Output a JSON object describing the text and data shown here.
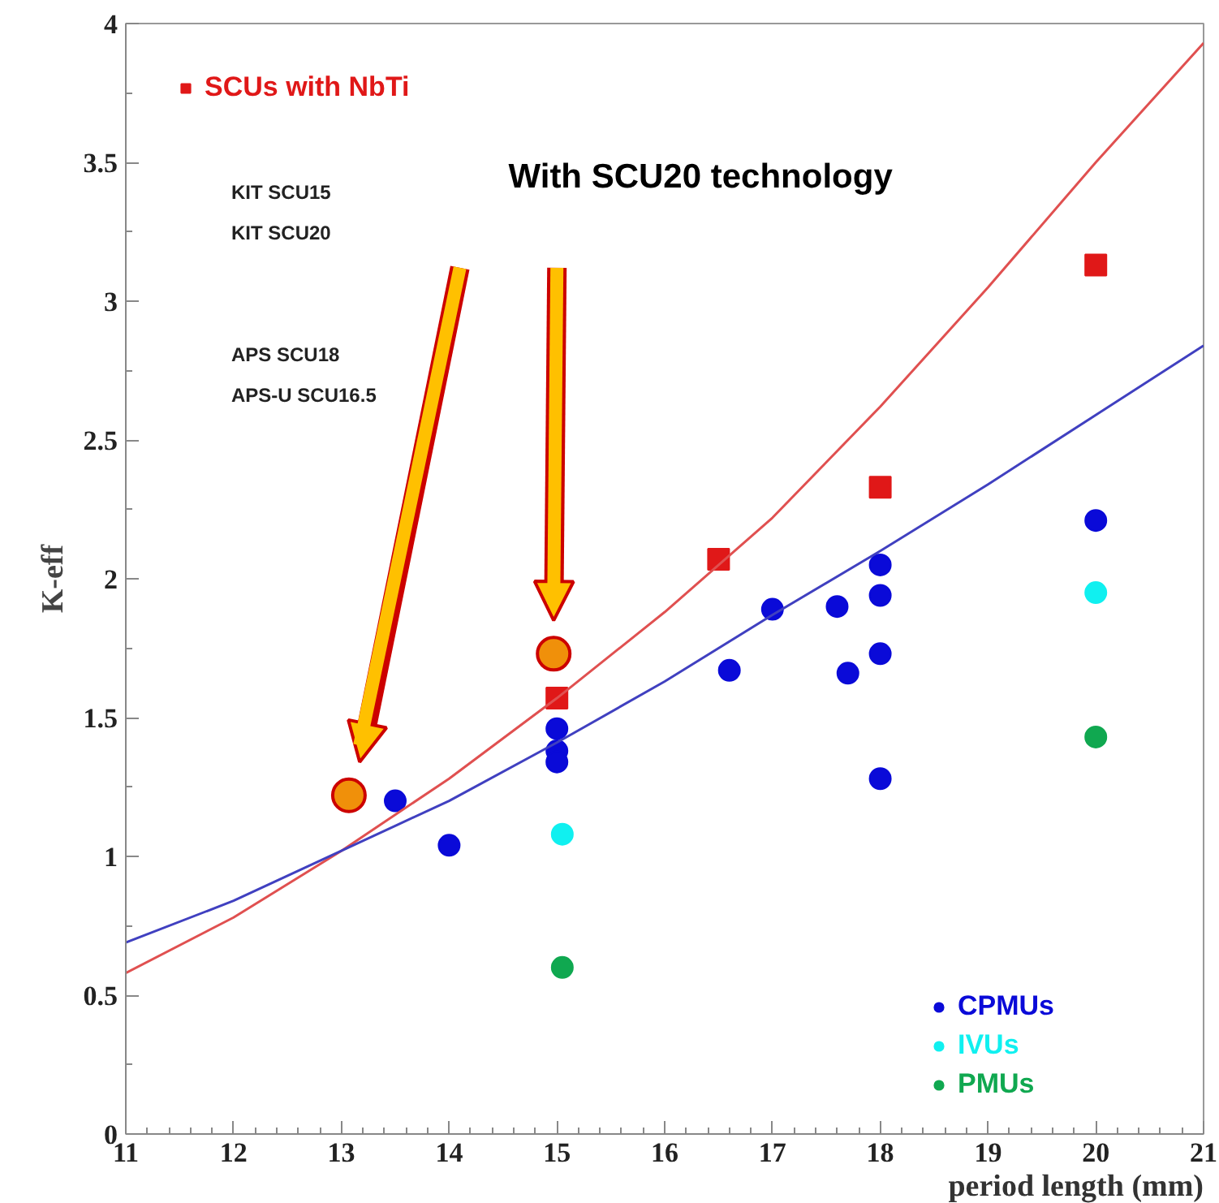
{
  "chart_data": {
    "type": "scatter",
    "xlabel": "period length (mm)",
    "ylabel": "K-eff",
    "xlim": [
      11,
      21
    ],
    "ylim": [
      0,
      4
    ],
    "xticks": [
      11,
      12,
      13,
      14,
      15,
      16,
      17,
      18,
      19,
      20,
      21
    ],
    "yticks": [
      0,
      0.5,
      1,
      1.5,
      2,
      2.5,
      3,
      3.5,
      4
    ],
    "grid": false,
    "legend": "bottom right",
    "annotations": [
      "KIT SCU15",
      "KIT SCU20",
      "APS SCU18",
      "APS-U SCU16.5",
      "With SCU20 technology"
    ],
    "series": [
      {
        "name": "SCUs with NbTi",
        "color": "#e01818",
        "marker": "square",
        "x": [
          15,
          16.5,
          18,
          20
        ],
        "values": [
          1.57,
          2.07,
          2.33,
          3.13
        ]
      },
      {
        "name": "CPMUs",
        "color": "#0a0ad8",
        "marker": "circle",
        "x": [
          13.5,
          14,
          15,
          15,
          15,
          16.6,
          17,
          17.6,
          17.7,
          18,
          18,
          18,
          18,
          20
        ],
        "values": [
          1.2,
          1.04,
          1.46,
          1.38,
          1.34,
          1.67,
          1.89,
          1.9,
          1.66,
          2.05,
          1.94,
          1.73,
          1.28,
          2.21
        ]
      },
      {
        "name": "IVUs",
        "color": "#10f0f0",
        "marker": "circle",
        "x": [
          15.05,
          20
        ],
        "values": [
          1.08,
          1.95
        ]
      },
      {
        "name": "PMUs",
        "color": "#10a850",
        "marker": "circle",
        "x": [
          15.05,
          20
        ],
        "values": [
          0.6,
          1.43
        ]
      },
      {
        "type": "line",
        "color": "#e05050",
        "x": [
          11,
          12,
          13,
          14,
          15,
          16,
          17,
          18,
          19,
          20,
          21
        ],
        "values": [
          0.58,
          0.78,
          1.02,
          1.28,
          1.57,
          1.88,
          2.22,
          2.62,
          3.05,
          3.5,
          3.93
        ]
      },
      {
        "type": "line",
        "color": "#4040c0",
        "x": [
          11,
          12,
          13,
          14,
          15,
          16,
          17,
          18,
          19,
          20,
          21
        ],
        "values": [
          0.69,
          0.84,
          1.02,
          1.2,
          1.41,
          1.63,
          1.87,
          2.1,
          2.34,
          2.59,
          2.84
        ]
      },
      {
        "color": "#f0900a",
        "marker": "circle",
        "x": [
          13.07,
          14.97
        ],
        "values": [
          1.22,
          1.73
        ]
      }
    ]
  }
}
